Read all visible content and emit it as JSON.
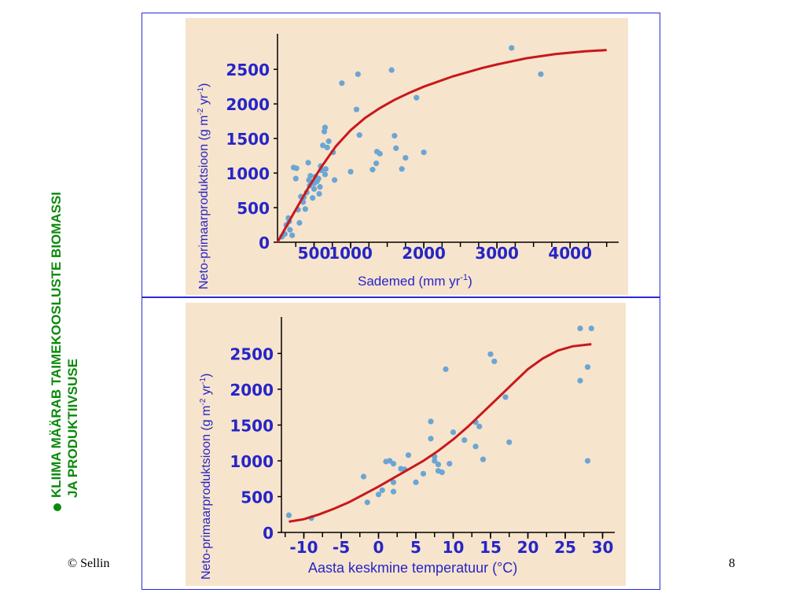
{
  "slide": {
    "side_title_line1": "KLIIMA MÄÄRAB TAIMEKOOSLUSTE BIOMASSI",
    "side_title_line2": "JA PRODUKTIIVSUSE",
    "copyright": "© Sellin",
    "page_number": "8",
    "colors": {
      "title_green": "#0b8a0b",
      "axis_blue": "#2525c8",
      "curve_red": "#c8181c",
      "point_blue": "#6aa6d4",
      "panel_bg": "#f7e4cc",
      "frame_border": "#2b2bd4"
    },
    "bullet_icon": "green-dot"
  },
  "chart_data": [
    {
      "type": "scatter",
      "title": "",
      "ylabel": "Neto-primaarproduktsioon (g m-2 yr-1)",
      "ylabel_main": "Neto-primaarproduktsioon (g m",
      "ylabel_sup1": "-2",
      "ylabel_mid": " yr",
      "ylabel_sup2": "-1",
      "ylabel_end": ")",
      "xlabel": "Sademed (mm yr-1)",
      "xlabel_main": "Sademed (mm yr",
      "xlabel_sup": "-1",
      "xlabel_end": ")",
      "xlim": [
        0,
        4600
      ],
      "ylim": [
        0,
        2900
      ],
      "x_ticks": [
        500,
        1000,
        2000,
        3000,
        4000
      ],
      "x_tick_labels": [
        "500",
        "1000",
        "2000",
        "3000",
        "4000"
      ],
      "y_ticks": [
        0,
        500,
        1000,
        1500,
        2000,
        2500
      ],
      "y_tick_labels": [
        "0",
        "500",
        "1000",
        "1500",
        "2000",
        "2500"
      ],
      "grid": false,
      "series": [
        {
          "kind": "points",
          "x": [
            60,
            100,
            120,
            150,
            160,
            170,
            200,
            220,
            250,
            260,
            280,
            300,
            320,
            350,
            360,
            380,
            400,
            420,
            430,
            440,
            450,
            460,
            480,
            500,
            500,
            520,
            540,
            560,
            570,
            580,
            590,
            600,
            620,
            640,
            650,
            650,
            660,
            680,
            700,
            760,
            780,
            880,
            1000,
            1080,
            1100,
            1120,
            1300,
            1350,
            1360,
            1400,
            1560,
            1600,
            1620,
            1700,
            1750,
            1900,
            2000,
            3200,
            3600
          ],
          "y": [
            80,
            120,
            250,
            350,
            300,
            180,
            100,
            1080,
            920,
            1070,
            470,
            280,
            660,
            580,
            650,
            480,
            720,
            1150,
            900,
            820,
            960,
            870,
            640,
            770,
            850,
            950,
            880,
            920,
            700,
            800,
            1100,
            1040,
            1400,
            1600,
            1660,
            980,
            1060,
            1370,
            1460,
            1300,
            900,
            2300,
            1020,
            1920,
            2430,
            1550,
            1050,
            1140,
            1310,
            1280,
            2490,
            1540,
            1360,
            1060,
            1220,
            2090,
            1300,
            2810,
            2430
          ]
        },
        {
          "kind": "curve",
          "x": [
            0,
            200,
            400,
            600,
            800,
            1000,
            1200,
            1400,
            1600,
            1800,
            2000,
            2400,
            2800,
            3000,
            3400,
            3800,
            4200,
            4500
          ],
          "y": [
            0,
            380,
            750,
            1090,
            1390,
            1620,
            1800,
            1940,
            2060,
            2160,
            2250,
            2400,
            2520,
            2570,
            2660,
            2720,
            2760,
            2780
          ]
        }
      ]
    },
    {
      "type": "scatter",
      "title": "",
      "ylabel": "Neto-primaarproduktsioon (g m-2 yr-1)",
      "ylabel_main": "Neto-primaarproduktsioon (g m",
      "ylabel_sup1": "-2",
      "ylabel_mid": " yr",
      "ylabel_sup2": "-1",
      "ylabel_end": ")",
      "xlabel": "Aasta keskmine temperatuur (°C)",
      "xlabel_main": "Aasta keskmine temperatuur (°C)",
      "xlabel_sup": "",
      "xlabel_end": "",
      "xlim": [
        -13,
        31
      ],
      "ylim": [
        0,
        2900
      ],
      "x_ticks": [
        -10,
        -5,
        0,
        5,
        10,
        15,
        20,
        25,
        30
      ],
      "x_tick_labels": [
        "-10",
        "-5",
        "0",
        "5",
        "10",
        "15",
        "20",
        "25",
        "30"
      ],
      "y_ticks": [
        0,
        500,
        1000,
        1500,
        2000,
        2500
      ],
      "y_tick_labels": [
        "0",
        "500",
        "1000",
        "1500",
        "2000",
        "2500"
      ],
      "grid": false,
      "series": [
        {
          "kind": "points",
          "x": [
            -12,
            -9,
            -2,
            -1.5,
            0,
            0.5,
            1,
            1.5,
            2,
            2,
            2,
            3,
            3.5,
            4,
            5,
            6,
            7,
            7,
            7.5,
            7.5,
            8,
            8,
            8.5,
            9,
            9.5,
            10,
            11.5,
            13,
            13,
            13.5,
            14,
            15,
            15.5,
            17,
            17.5,
            27,
            27,
            28,
            28.5,
            28
          ],
          "y": [
            240,
            200,
            780,
            420,
            530,
            590,
            990,
            1000,
            960,
            700,
            570,
            890,
            880,
            1080,
            700,
            820,
            1310,
            1550,
            1000,
            1060,
            860,
            950,
            840,
            2280,
            960,
            1400,
            1290,
            1200,
            1540,
            1480,
            1020,
            2490,
            2390,
            1890,
            1260,
            2120,
            2850,
            2310,
            2850,
            1000
          ],
          "x_note": "points read approximately from plot"
        },
        {
          "kind": "curve",
          "x": [
            -12,
            -10,
            -8,
            -6,
            -4,
            -2,
            0,
            2,
            4,
            6,
            8,
            10,
            12,
            14,
            16,
            18,
            20,
            22,
            24,
            26,
            28.5
          ],
          "y": [
            150,
            185,
            250,
            330,
            420,
            530,
            640,
            760,
            880,
            1000,
            1140,
            1300,
            1480,
            1680,
            1880,
            2080,
            2280,
            2430,
            2540,
            2600,
            2630
          ]
        }
      ]
    }
  ]
}
